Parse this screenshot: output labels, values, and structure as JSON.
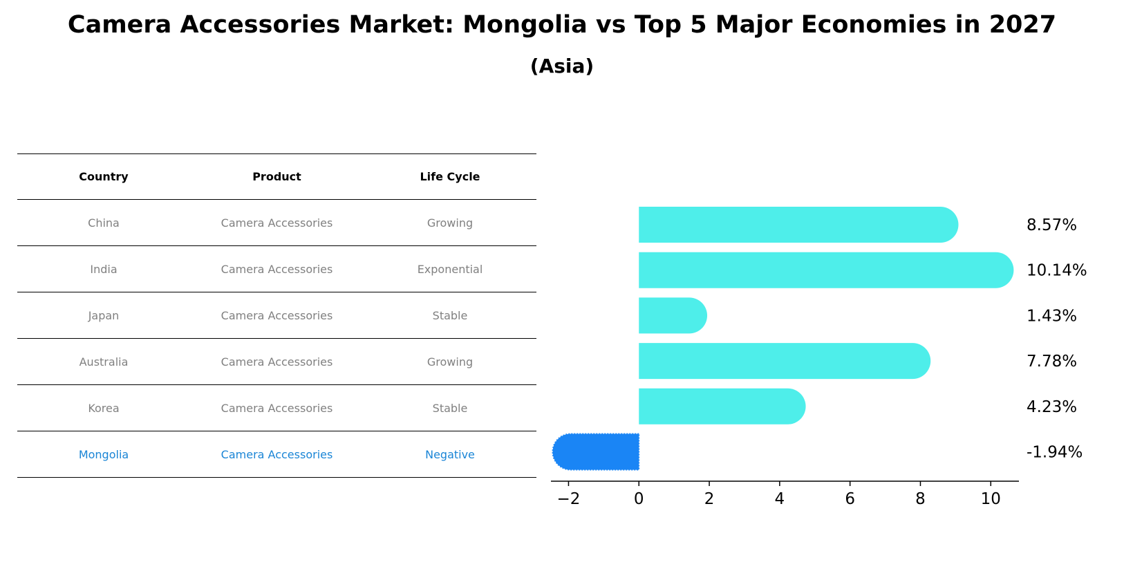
{
  "title": "Camera Accessories Market: Mongolia vs Top 5 Major Economies in 2027",
  "subtitle": "(Asia)",
  "table": {
    "headers": [
      "Country",
      "Product",
      "Life Cycle"
    ],
    "rows": [
      {
        "country": "China",
        "product": "Camera Accessories",
        "life_cycle": "Growing"
      },
      {
        "country": "India",
        "product": "Camera Accessories",
        "life_cycle": "Exponential"
      },
      {
        "country": "Japan",
        "product": "Camera Accessories",
        "life_cycle": "Stable"
      },
      {
        "country": "Australia",
        "product": "Camera Accessories",
        "life_cycle": "Growing"
      },
      {
        "country": "Korea",
        "product": "Camera Accessories",
        "life_cycle": "Stable"
      },
      {
        "country": "Mongolia",
        "product": "Camera Accessories",
        "life_cycle": "Negative"
      }
    ]
  },
  "chart_data": {
    "type": "bar",
    "orientation": "horizontal",
    "categories": [
      "China",
      "India",
      "Japan",
      "Australia",
      "Korea",
      "Mongolia"
    ],
    "values": [
      8.57,
      10.14,
      1.43,
      7.78,
      4.23,
      -1.94
    ],
    "labels": [
      "8.57%",
      "10.14%",
      "1.43%",
      "7.78%",
      "4.23%",
      "-1.94%"
    ],
    "xlim": [
      -2.5,
      10.8
    ],
    "xticks": [
      -2,
      0,
      2,
      4,
      6,
      8,
      10
    ],
    "xtick_labels": [
      "−2",
      "0",
      "2",
      "4",
      "6",
      "8",
      "10"
    ],
    "highlight": "Mongolia",
    "colors": {
      "bar": "#4eeeea",
      "highlight": "#1a85f5",
      "text": "#000000"
    }
  }
}
